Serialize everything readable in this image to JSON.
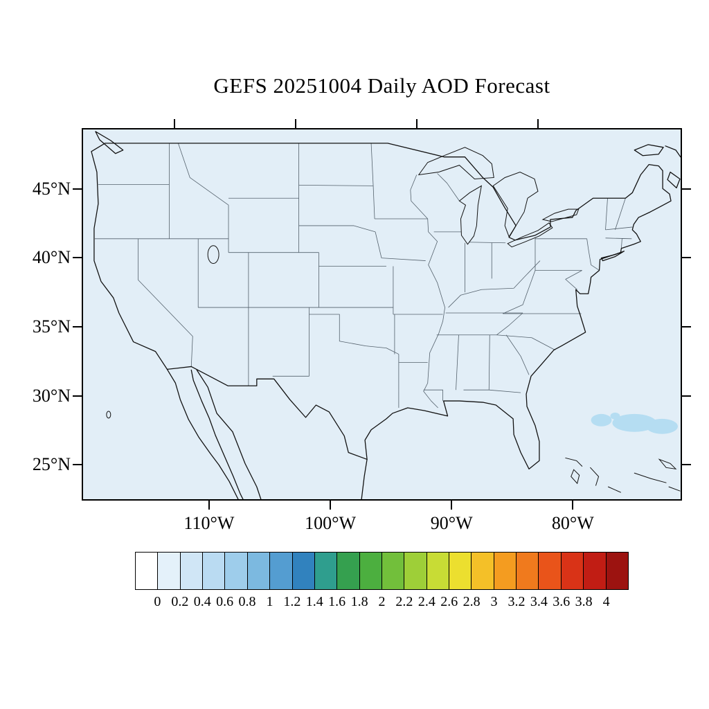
{
  "title": "GEFS 20251004 Daily AOD Forecast",
  "map": {
    "background_color": "#e2eef7",
    "coastline_color": "#111111",
    "state_line_color": "#53606b",
    "aod_patch_color": "#b5ddf2"
  },
  "axes": {
    "lat_ticks": [
      {
        "value": 45,
        "label": "45°N"
      },
      {
        "value": 40,
        "label": "40°N"
      },
      {
        "value": 35,
        "label": "35°N"
      },
      {
        "value": 30,
        "label": "30°N"
      },
      {
        "value": 25,
        "label": "25°N"
      }
    ],
    "lon_ticks": [
      {
        "value": -110,
        "label": "110°W"
      },
      {
        "value": -100,
        "label": "100°W"
      },
      {
        "value": -90,
        "label": "90°W"
      },
      {
        "value": -80,
        "label": "80°W"
      }
    ]
  },
  "colorbar": {
    "labels": [
      "0",
      "0.2",
      "0.4",
      "0.6",
      "0.8",
      "1",
      "1.2",
      "1.4",
      "1.6",
      "1.8",
      "2",
      "2.2",
      "2.4",
      "2.6",
      "2.8",
      "3",
      "3.2",
      "3.4",
      "3.6",
      "3.8",
      "4"
    ],
    "colors": [
      "#ffffff",
      "#e4f1fa",
      "#d0e6f6",
      "#badbf2",
      "#9ecdeb",
      "#7cb9e0",
      "#549dd1",
      "#3182be",
      "#2f9e8e",
      "#35a04f",
      "#4caf3f",
      "#72bf3b",
      "#9ecf38",
      "#c8dc35",
      "#ecdf2f",
      "#f4c028",
      "#f49c20",
      "#f07a1d",
      "#e9541a",
      "#d93317",
      "#c11d14",
      "#9c1310"
    ]
  },
  "chart_data": {
    "type": "heatmap",
    "title": "GEFS 20251004 Daily AOD Forecast",
    "xlabel": "",
    "ylabel": "",
    "x_ticks": [
      "110°W",
      "100°W",
      "90°W",
      "80°W"
    ],
    "y_ticks": [
      "45°N",
      "40°N",
      "35°N",
      "30°N",
      "25°N"
    ],
    "xlim": [
      -120.5,
      -71
    ],
    "ylim": [
      22.4,
      49.4
    ],
    "colorbar_levels": [
      0,
      0.2,
      0.4,
      0.6,
      0.8,
      1,
      1.2,
      1.4,
      1.6,
      1.8,
      2,
      2.2,
      2.4,
      2.6,
      2.8,
      3,
      3.2,
      3.4,
      3.6,
      3.8,
      4
    ],
    "legend_position": "bottom",
    "grid": false,
    "field_summary": {
      "dominant_value_range": [
        0,
        0.2
      ],
      "anomalies": [
        {
          "approx_lon": -76,
          "approx_lat": 28,
          "value_range": [
            0.2,
            0.4
          ],
          "note": "slightly elevated AOD patch over western Atlantic southeast of the US coast"
        }
      ]
    }
  }
}
